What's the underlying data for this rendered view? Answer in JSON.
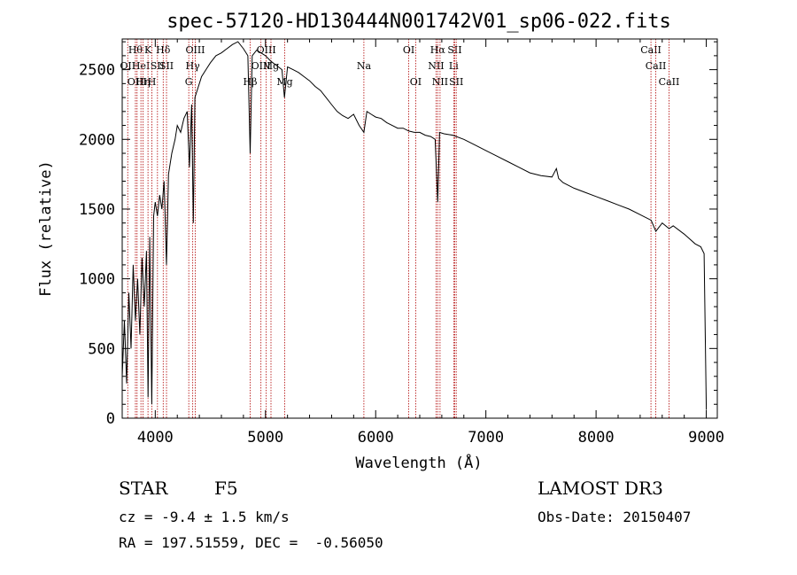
{
  "chart_data": {
    "type": "line",
    "title": "spec-57120-HD130444N001742V01_sp06-022.fits",
    "xlabel": "Wavelength (Å)",
    "ylabel": "Flux (relative)",
    "xlim": [
      3700,
      9100
    ],
    "ylim": [
      0,
      2720
    ],
    "xticks": [
      4000,
      5000,
      6000,
      7000,
      8000,
      9000
    ],
    "yticks": [
      0,
      500,
      1000,
      1500,
      2000,
      2500
    ],
    "grid": false,
    "series": [
      {
        "values_x": [
          3700,
          3720,
          3740,
          3760,
          3780,
          3800,
          3820,
          3840,
          3860,
          3880,
          3900,
          3920,
          3935,
          3950,
          3968,
          3985,
          4000,
          4020,
          4040,
          4060,
          4080,
          4102,
          4120,
          4150,
          4180,
          4200,
          4230,
          4260,
          4290,
          4310,
          4330,
          4345,
          4360,
          4380,
          4420,
          4460,
          4500,
          4550,
          4600,
          4650,
          4700,
          4750,
          4800,
          4840,
          4861,
          4880,
          4920,
          4960,
          5000,
          5050,
          5100,
          5150,
          5172,
          5200,
          5250,
          5300,
          5350,
          5400,
          5450,
          5500,
          5550,
          5600,
          5650,
          5700,
          5750,
          5800,
          5850,
          5893,
          5920,
          5960,
          6000,
          6050,
          6100,
          6150,
          6200,
          6250,
          6300,
          6350,
          6400,
          6450,
          6500,
          6540,
          6563,
          6580,
          6620,
          6700,
          6800,
          6900,
          7000,
          7100,
          7200,
          7300,
          7400,
          7500,
          7600,
          7640,
          7660,
          7700,
          7800,
          7900,
          8000,
          8100,
          8200,
          8300,
          8400,
          8500,
          8542,
          8600,
          8662,
          8700,
          8800,
          8900,
          8950,
          8980,
          9000
        ],
        "values_y": [
          300,
          700,
          250,
          900,
          500,
          1100,
          700,
          1000,
          600,
          1150,
          800,
          1200,
          150,
          1300,
          100,
          1450,
          1550,
          1450,
          1600,
          1500,
          1700,
          1100,
          1750,
          1900,
          2000,
          2100,
          2050,
          2150,
          2200,
          1800,
          2250,
          1400,
          2300,
          2350,
          2450,
          2500,
          2550,
          2600,
          2620,
          2650,
          2680,
          2700,
          2650,
          2600,
          1900,
          2600,
          2640,
          2620,
          2600,
          2560,
          2530,
          2500,
          2300,
          2520,
          2500,
          2480,
          2450,
          2420,
          2380,
          2350,
          2300,
          2250,
          2200,
          2170,
          2150,
          2180,
          2100,
          2050,
          2200,
          2180,
          2160,
          2150,
          2120,
          2100,
          2080,
          2080,
          2060,
          2050,
          2050,
          2030,
          2020,
          2000,
          1550,
          2050,
          2040,
          2030,
          2000,
          1960,
          1920,
          1880,
          1840,
          1800,
          1760,
          1740,
          1730,
          1790,
          1720,
          1690,
          1650,
          1620,
          1590,
          1560,
          1530,
          1500,
          1460,
          1420,
          1340,
          1400,
          1360,
          1380,
          1320,
          1250,
          1230,
          1180,
          60
        ]
      }
    ],
    "lines": [
      {
        "x": 3750,
        "row": 1,
        "label": "OII"
      },
      {
        "x": 3820,
        "row": 0,
        "label": "Hθ"
      },
      {
        "x": 3835,
        "row": 2,
        "label": "OIII"
      },
      {
        "x": 3870,
        "row": 1,
        "label": "HeI"
      },
      {
        "x": 3889,
        "row": 2,
        "label": "Hη"
      },
      {
        "x": 3934,
        "row": 0,
        "label": "K"
      },
      {
        "x": 3970,
        "row": 2,
        "label": "H"
      },
      {
        "x": 4020,
        "row": 1,
        "label": "SII"
      },
      {
        "x": 4072,
        "row": 0,
        "label": "Hδ"
      },
      {
        "x": 4102,
        "row": 1,
        "label": "SII"
      },
      {
        "x": 4304,
        "row": 2,
        "label": "G"
      },
      {
        "x": 4340,
        "row": 1,
        "label": "Hγ"
      },
      {
        "x": 4363,
        "row": 0,
        "label": "OIII"
      },
      {
        "x": 4861,
        "row": 2,
        "label": "Hβ"
      },
      {
        "x": 4959,
        "row": 1,
        "label": "OIII"
      },
      {
        "x": 5007,
        "row": 0,
        "label": "OIII"
      },
      {
        "x": 5050,
        "row": 1,
        "label": "Mg"
      },
      {
        "x": 5175,
        "row": 2,
        "label": "Mg"
      },
      {
        "x": 5893,
        "row": 1,
        "label": "Na"
      },
      {
        "x": 6300,
        "row": 0,
        "label": "OI"
      },
      {
        "x": 6363,
        "row": 2,
        "label": "OI"
      },
      {
        "x": 6548,
        "row": 1,
        "label": "NII"
      },
      {
        "x": 6563,
        "row": 0,
        "label": "Hα"
      },
      {
        "x": 6584,
        "row": 2,
        "label": "NII"
      },
      {
        "x": 6708,
        "row": 1,
        "label": "Li"
      },
      {
        "x": 6717,
        "row": 0,
        "label": "SII"
      },
      {
        "x": 6731,
        "row": 2,
        "label": "SII"
      },
      {
        "x": 8498,
        "row": 0,
        "label": "CaII"
      },
      {
        "x": 8542,
        "row": 1,
        "label": "CaII"
      },
      {
        "x": 8662,
        "row": 2,
        "label": "CaII"
      }
    ]
  },
  "info": {
    "object_type": "STAR",
    "spectral_class": "F5",
    "survey": "LAMOST DR3",
    "redshift": "cz = -9.4 ± 1.5 km/s",
    "obs_date": "Obs-Date: 20150407",
    "coords": "RA = 197.51559, DEC =  -0.56050"
  },
  "colors": {
    "line": "#000000",
    "marker_line": "#b00000",
    "background": "#ffffff"
  }
}
